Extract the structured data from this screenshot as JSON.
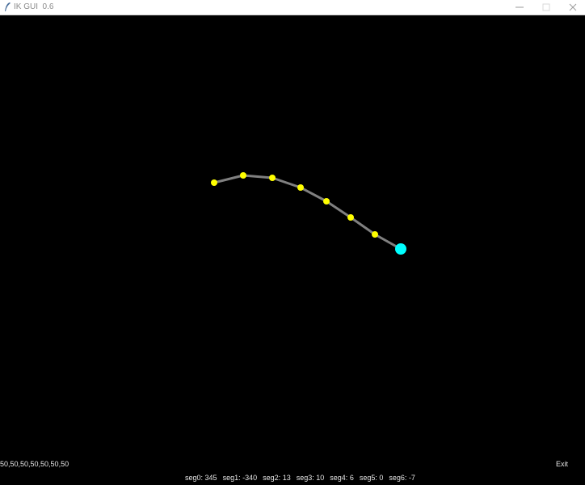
{
  "window": {
    "title": "IK GUI  0.6",
    "icon": "feather-icon"
  },
  "colors": {
    "background": "#000000",
    "segment": "#808080",
    "joint": "#ffff00",
    "end_effector": "#00ffff",
    "text": "#e6e6e6"
  },
  "left_label": "50,50,50,50,50,50,50",
  "exit_label": "Exit",
  "segments": [
    {
      "name": "seg0",
      "value": 345
    },
    {
      "name": "seg1",
      "value": -340
    },
    {
      "name": "seg2",
      "value": 13
    },
    {
      "name": "seg3",
      "value": 10
    },
    {
      "name": "seg4",
      "value": 6
    },
    {
      "name": "seg5",
      "value": 0
    },
    {
      "name": "seg6",
      "value": -7
    }
  ]
}
